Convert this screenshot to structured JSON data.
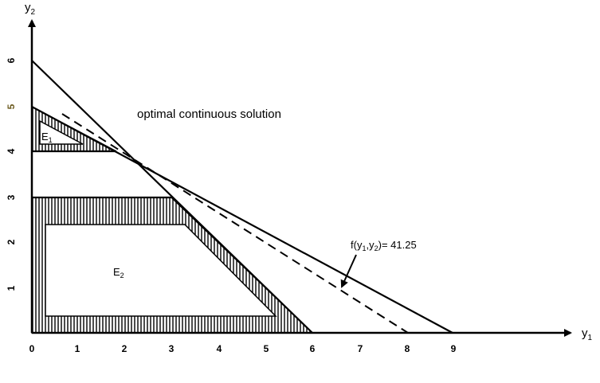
{
  "axes": {
    "x_label": "y",
    "x_label_sub": "1",
    "y_label": "y",
    "y_label_sub": "2",
    "x_ticks": [
      "0",
      "1",
      "2",
      "3",
      "4",
      "5",
      "6",
      "7",
      "8",
      "9"
    ],
    "y_ticks": [
      "1",
      "2",
      "3",
      "4",
      "5",
      "6"
    ]
  },
  "annotations": {
    "optimal": "optimal continuous solution",
    "objective_prefix": "f(y",
    "objective_sub1": "1",
    "objective_mid": ",y",
    "objective_sub2": "2",
    "objective_suffix": ")= 41.25"
  },
  "regions": {
    "e1": {
      "letter": "E",
      "sub": "1"
    },
    "e2": {
      "letter": "E",
      "sub": "2"
    }
  },
  "colors": {
    "line": "#000000",
    "tick_five": "#6b5a1e"
  }
}
